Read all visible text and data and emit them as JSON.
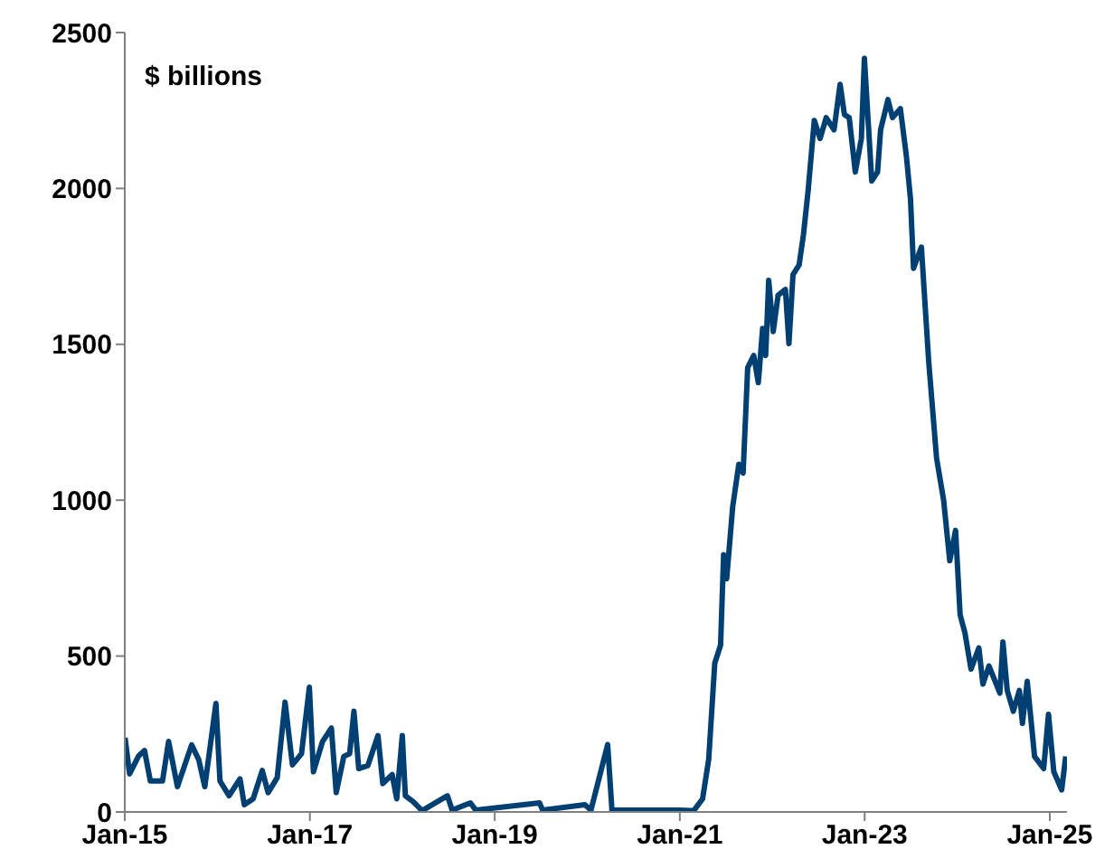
{
  "chart_data": {
    "type": "line",
    "ylabel": "$ billions",
    "x": [
      "2015-01-02",
      "2015-01-20",
      "2015-02-25",
      "2015-03-20",
      "2015-04-12",
      "2015-05-30",
      "2015-06-23",
      "2015-07-28",
      "2015-09-22",
      "2015-10-20",
      "2015-11-13",
      "2015-12-27",
      "2016-01-12",
      "2016-02-17",
      "2016-03-31",
      "2016-04-17",
      "2016-05-22",
      "2016-06-27",
      "2016-07-20",
      "2016-08-25",
      "2016-09-25",
      "2016-10-24",
      "2016-11-29",
      "2016-12-30",
      "2017-01-15",
      "2017-02-20",
      "2017-03-27",
      "2017-04-15",
      "2017-05-15",
      "2017-06-07",
      "2017-06-24",
      "2017-07-13",
      "2017-08-18",
      "2017-09-27",
      "2017-10-16",
      "2017-11-22",
      "2017-12-10",
      "2018-01-01",
      "2018-01-13",
      "2018-02-13",
      "2018-03-20",
      "2018-06-28",
      "2018-07-17",
      "2018-09-27",
      "2018-10-18",
      "2019-06-27",
      "2019-07-09",
      "2019-12-23",
      "2020-01-16",
      "2020-03-22",
      "2020-04-08",
      "2020-12-27",
      "2021-02-25",
      "2021-04-01",
      "2021-04-25",
      "2021-05-19",
      "2021-06-11",
      "2021-06-23",
      "2021-07-05",
      "2021-07-29",
      "2021-08-22",
      "2021-09-08",
      "2021-09-26",
      "2021-10-20",
      "2021-11-07",
      "2021-11-24",
      "2021-12-06",
      "2021-12-18",
      "2022-01-05",
      "2022-01-24",
      "2022-02-22",
      "2022-03-08",
      "2022-03-24",
      "2022-04-17",
      "2022-05-04",
      "2022-05-23",
      "2022-06-16",
      "2022-07-09",
      "2022-08-02",
      "2022-09-02",
      "2022-09-26",
      "2022-10-13",
      "2022-11-01",
      "2022-11-25",
      "2022-12-19",
      "2022-12-31",
      "2023-01-29",
      "2023-02-21",
      "2023-03-05",
      "2023-04-03",
      "2023-04-21",
      "2023-05-22",
      "2023-06-15",
      "2023-07-01",
      "2023-07-13",
      "2023-08-13",
      "2023-09-11",
      "2023-10-12",
      "2023-11-09",
      "2023-12-03",
      "2023-12-26",
      "2024-01-13",
      "2024-02-01",
      "2024-02-25",
      "2024-03-27",
      "2024-04-12",
      "2024-05-06",
      "2024-06-18",
      "2024-06-30",
      "2024-07-17",
      "2024-08-10",
      "2024-09-03",
      "2024-09-15",
      "2024-10-04",
      "2024-11-02",
      "2024-12-08",
      "2024-12-27",
      "2025-01-17",
      "2025-02-17",
      "2025-03-05"
    ],
    "series": [
      {
        "color": "#003f72",
        "values": [
          238,
          122,
          180,
          197,
          99,
          99,
          226,
          81,
          215,
          168,
          81,
          348,
          99,
          52,
          106,
          23,
          42,
          133,
          62,
          110,
          352,
          151,
          187,
          400,
          129,
          226,
          269,
          62,
          178,
          187,
          323,
          139,
          149,
          245,
          91,
          120,
          42,
          245,
          52,
          33,
          4,
          52,
          6,
          29,
          6,
          29,
          6,
          23,
          6,
          216,
          6,
          6,
          4,
          42,
          168,
          477,
          535,
          825,
          748,
          980,
          1115,
          1087,
          1425,
          1464,
          1377,
          1551,
          1464,
          1705,
          1541,
          1657,
          1676,
          1502,
          1724,
          1754,
          1850,
          1995,
          2218,
          2160,
          2227,
          2188,
          2334,
          2237,
          2227,
          2053,
          2160,
          2417,
          2024,
          2053,
          2188,
          2285,
          2227,
          2256,
          2102,
          1966,
          1744,
          1812,
          1444,
          1135,
          999,
          806,
          903,
          632,
          574,
          458,
          526,
          410,
          468,
          381,
          545,
          390,
          323,
          390,
          284,
          419,
          178,
          139,
          313,
          129,
          71,
          178
        ]
      }
    ],
    "xlim": [
      "2015-01-01",
      "2025-03-10"
    ],
    "xticks": [
      {
        "value": "2015-01-01",
        "label": "Jan-15"
      },
      {
        "value": "2017-01-01",
        "label": "Jan-17"
      },
      {
        "value": "2019-01-01",
        "label": "Jan-19"
      },
      {
        "value": "2021-01-01",
        "label": "Jan-21"
      },
      {
        "value": "2023-01-01",
        "label": "Jan-23"
      },
      {
        "value": "2025-01-01",
        "label": "Jan-25"
      }
    ],
    "ylim": [
      0,
      2500
    ],
    "yticks": [
      0,
      500,
      1000,
      1500,
      2000,
      2500
    ],
    "grid": false,
    "line_style": "solid",
    "marker": "none"
  }
}
